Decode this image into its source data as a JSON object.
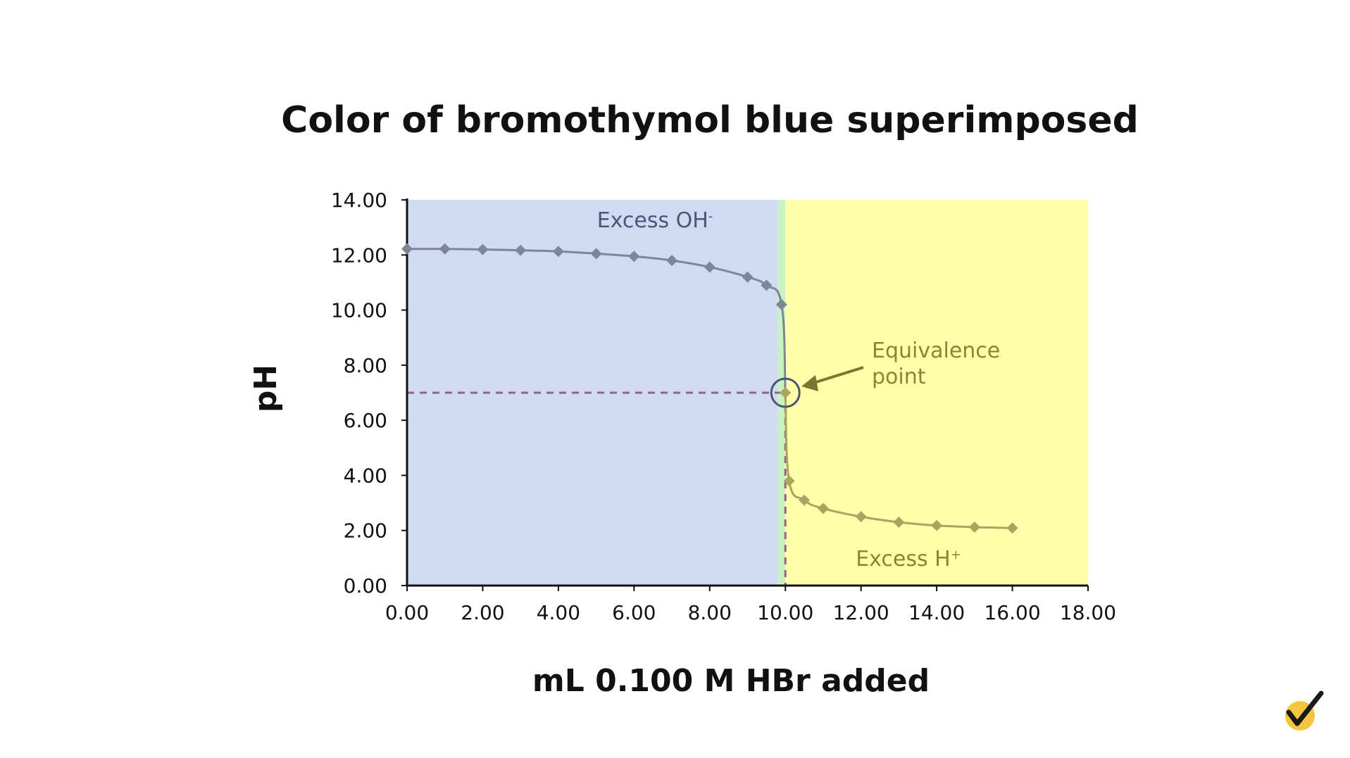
{
  "chart_data": {
    "type": "line",
    "title": "Color of bromothymol blue superimposed",
    "xlabel": "mL 0.100 M HBr added",
    "ylabel": "pH",
    "xlim": [
      0,
      18
    ],
    "ylim": [
      0,
      14
    ],
    "x_ticks": [
      "0.00",
      "2.00",
      "4.00",
      "6.00",
      "8.00",
      "10.00",
      "12.00",
      "14.00",
      "16.00",
      "18.00"
    ],
    "y_ticks": [
      "0.00",
      "2.00",
      "4.00",
      "6.00",
      "8.00",
      "10.00",
      "12.00",
      "14.00"
    ],
    "series": [
      {
        "x": [
          0,
          1,
          2,
          3,
          4,
          5,
          6,
          7,
          8,
          9,
          9.5,
          9.9,
          10.0,
          10.1,
          10.5,
          11,
          12,
          13,
          14,
          15,
          16
        ],
        "y": [
          12.22,
          12.22,
          12.2,
          12.17,
          12.13,
          12.05,
          11.95,
          11.8,
          11.56,
          11.2,
          10.9,
          10.2,
          7.0,
          3.8,
          3.1,
          2.8,
          2.5,
          2.3,
          2.18,
          2.12,
          2.09
        ]
      }
    ],
    "regions": [
      {
        "x_range": [
          0,
          9.8
        ],
        "color": "#d0daf2",
        "label": "Excess OH",
        "label_superscript": "-",
        "label_color": "#4b5676"
      },
      {
        "x_range": [
          9.8,
          10.0
        ],
        "color": "#c9f3c2",
        "label": ""
      },
      {
        "x_range": [
          10.0,
          18
        ],
        "color": "#ffffaa",
        "label": "Excess H",
        "label_superscript": "+",
        "label_color": "#8a8530"
      }
    ],
    "equivalence_point": {
      "x": 10.0,
      "y": 7.0,
      "label_line1": "Equivalence",
      "label_line2": "point",
      "label_color": "#8a8530"
    },
    "grid": false,
    "legend": "none"
  },
  "colors": {
    "line_base": "#7d8599",
    "line_acid": "#a9a560",
    "marker_base": "#7d8599",
    "marker_acid": "#a9a560",
    "dashed_line": "#9c6080",
    "circle": "#4b5676",
    "arrow": "#7a7630"
  },
  "logo": {
    "icon": "check-circle-icon",
    "color": "#f5c542"
  }
}
